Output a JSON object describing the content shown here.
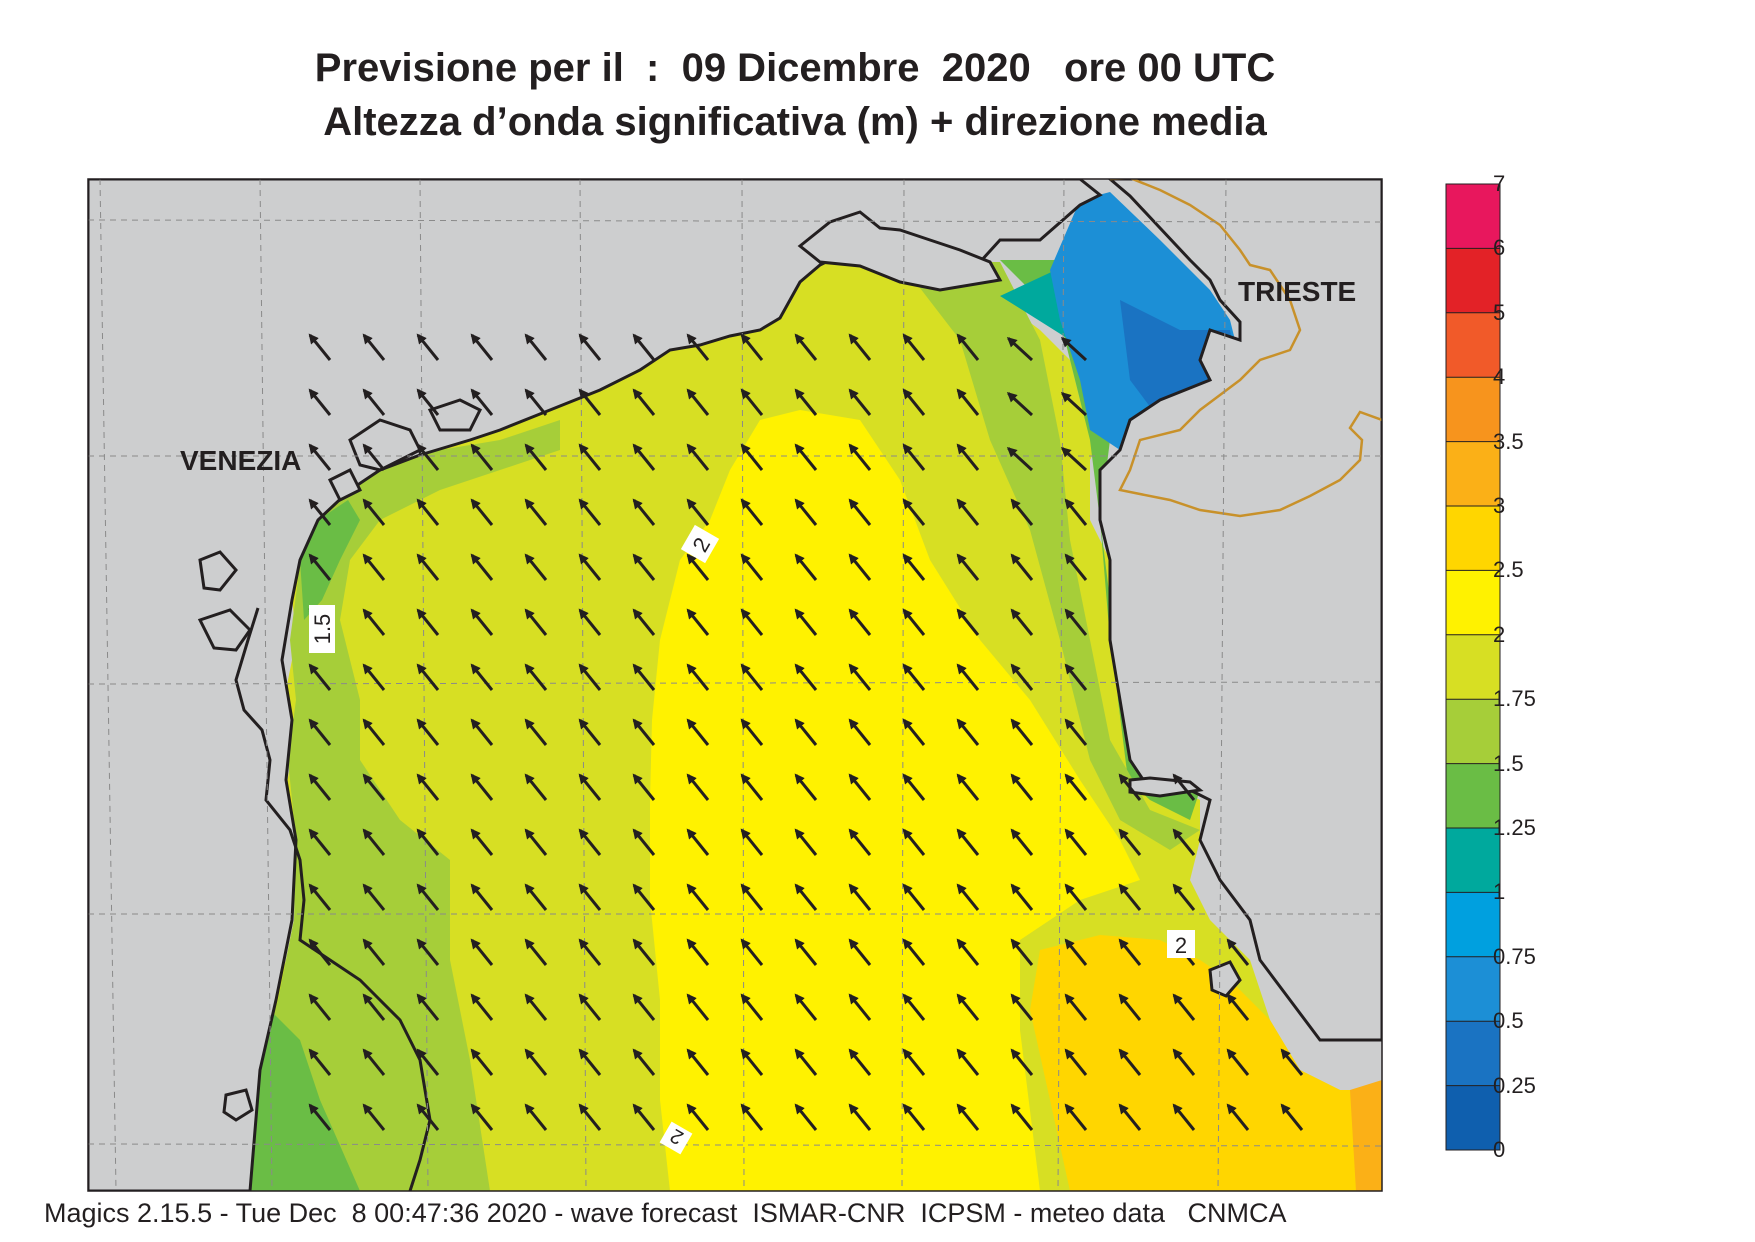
{
  "title": {
    "line1": "Previsione per il  :  09 Dicembre  2020   ore 00 UTC",
    "line2": "Altezza d’onda significativa (m) + direzione media"
  },
  "map": {
    "place_labels": [
      "VENEZIA",
      "TRIESTE"
    ],
    "contour_labels": [
      "2",
      "2",
      "1.5",
      "2"
    ],
    "land_color": "#cdcecf",
    "coast_color": "#231f20",
    "border_color": "#c8912a",
    "arrow_heading": "north-west"
  },
  "colorbar": {
    "labels": [
      "7",
      "6",
      "5",
      "4",
      "3.5",
      "3",
      "2.5",
      "2",
      "1.75",
      "1.5",
      "1.25",
      "1",
      "0.75",
      "0.5",
      "0.25",
      "0"
    ],
    "colors": [
      "#e8175d",
      "#e32227",
      "#f15a29",
      "#f7941d",
      "#fbb017",
      "#ffd600",
      "#fff200",
      "#d7df23",
      "#a6ce39",
      "#6abd45",
      "#00a99d",
      "#00a0df",
      "#1c8fd6",
      "#1a73c2",
      "#0f5fae"
    ]
  },
  "footer": "Magics 2.15.5 - Tue Dec  8 00:47:36 2020 - wave forecast  ISMAR-CNR  ICPSM - meteo data   CNMCA"
}
